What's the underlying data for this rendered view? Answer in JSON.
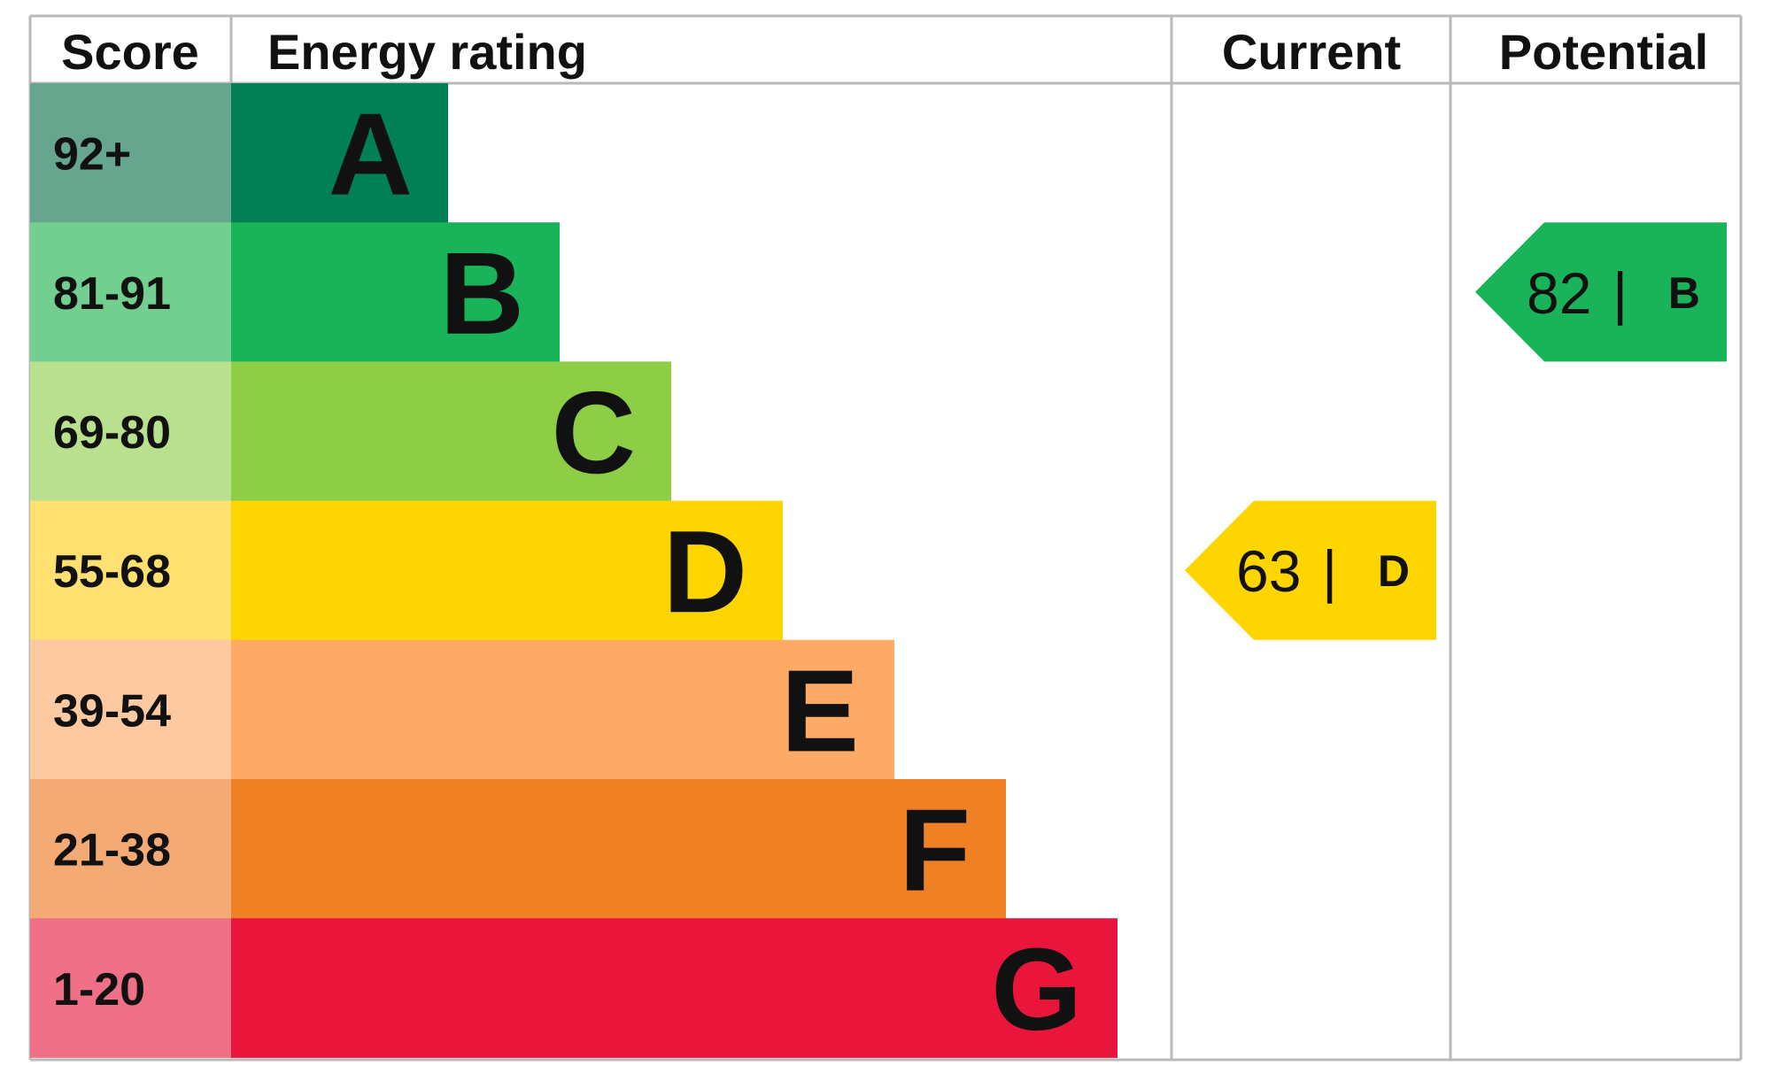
{
  "headers": {
    "score": "Score",
    "energy_rating": "Energy rating",
    "current": "Current",
    "potential": "Potential"
  },
  "chart_data": {
    "type": "bar",
    "categories": [
      "A",
      "B",
      "C",
      "D",
      "E",
      "F",
      "G"
    ],
    "score_ranges": [
      "92+",
      "81-91",
      "69-80",
      "55-68",
      "39-54",
      "21-38",
      "1-20"
    ],
    "bar_colors": [
      "#008054",
      "#19b459",
      "#8dce46",
      "#ffd500",
      "#fcaa65",
      "#ef8023",
      "#e9153b"
    ],
    "score_colors": [
      "#66a68e",
      "#72cf8f",
      "#b9e08f",
      "#ffe070",
      "#fdc9a0",
      "#f3aa75",
      "#f07088"
    ],
    "current": {
      "value": 63,
      "band": "D",
      "color": "#ffd500"
    },
    "potential": {
      "value": 82,
      "band": "B",
      "color": "#19b459"
    },
    "separator": "|"
  }
}
